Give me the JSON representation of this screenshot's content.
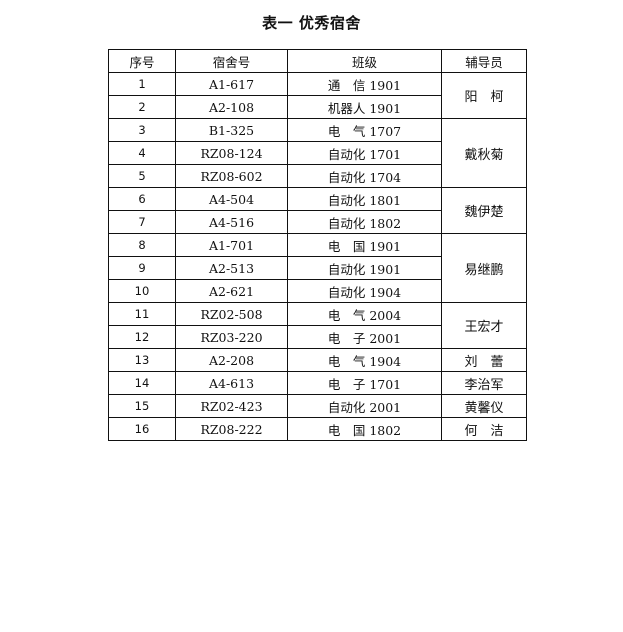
{
  "title": "表一  优秀宿舍",
  "columns": [
    "序号",
    "宿舍号",
    "班级",
    "辅导员"
  ],
  "rows": [
    {
      "no": "1",
      "room": "A1-617",
      "class": "通　信 1901"
    },
    {
      "no": "2",
      "room": "A2-108",
      "class": "机器人 1901"
    },
    {
      "no": "3",
      "room": "B1-325",
      "class": "电　气 1707"
    },
    {
      "no": "4",
      "room": "RZ08-124",
      "class": "自动化 1701"
    },
    {
      "no": "5",
      "room": "RZ08-602",
      "class": "自动化 1704"
    },
    {
      "no": "6",
      "room": "A4-504",
      "class": "自动化 1801"
    },
    {
      "no": "7",
      "room": "A4-516",
      "class": "自动化 1802"
    },
    {
      "no": "8",
      "room": "A1-701",
      "class": "电　国 1901"
    },
    {
      "no": "9",
      "room": "A2-513",
      "class": "自动化 1901"
    },
    {
      "no": "10",
      "room": "A2-621",
      "class": "自动化 1904"
    },
    {
      "no": "11",
      "room": "RZ02-508",
      "class": "电　气 2004"
    },
    {
      "no": "12",
      "room": "RZ03-220",
      "class": "电　子 2001"
    },
    {
      "no": "13",
      "room": "A2-208",
      "class": "电　气 1904"
    },
    {
      "no": "14",
      "room": "A4-613",
      "class": "电　子 1701"
    },
    {
      "no": "15",
      "room": "RZ02-423",
      "class": "自动化 2001"
    },
    {
      "no": "16",
      "room": "RZ08-222",
      "class": "电　国 1802"
    }
  ],
  "advisors": [
    {
      "name": "阳　柯",
      "rows": 2
    },
    {
      "name": "戴秋菊",
      "rows": 3
    },
    {
      "name": "魏伊楚",
      "rows": 2
    },
    {
      "name": "易继鹏",
      "rows": 3
    },
    {
      "name": "王宏才",
      "rows": 2
    },
    {
      "name": "刘　蕾",
      "rows": 1
    },
    {
      "name": "李治军",
      "rows": 1
    },
    {
      "name": "黄馨仪",
      "rows": 1
    },
    {
      "name": "何　洁",
      "rows": 1
    }
  ]
}
